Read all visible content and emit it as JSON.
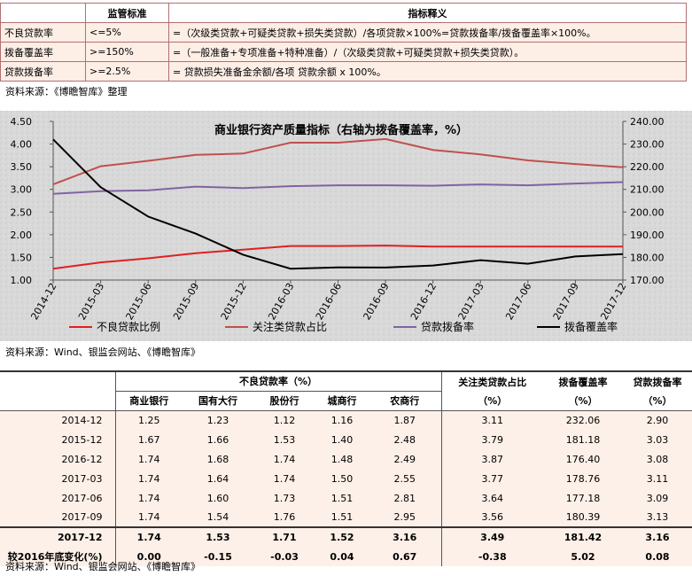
{
  "defs_table": {
    "headers": [
      "",
      "监管标准",
      "指标释义"
    ],
    "rows": [
      {
        "name": "不良贷款率",
        "standard": "<=5%",
        "definition": "=（次级类贷款+可疑类贷款+损失类贷款）/各项贷款×100%=贷款拨备率/拨备覆盖率×100%。"
      },
      {
        "name": "拨备覆盖率",
        "standard": ">=150%",
        "definition": "=（一般准备+专项准备+特种准备）/（次级类贷款+可疑类贷款+损失类贷款）。"
      },
      {
        "name": "贷款拨备率",
        "standard": ">=2.5%",
        "definition": "= 贷款损失准备金余额/各项 贷款余额 x 100%。"
      }
    ],
    "source": "资料来源：《博瞻智库》整理"
  },
  "chart_data": {
    "type": "line",
    "title": "商业银行资产质量指标（右轴为拨备覆盖率，%）",
    "categories": [
      "2014-12",
      "2015-03",
      "2015-06",
      "2015-09",
      "2015-12",
      "2016-03",
      "2016-06",
      "2016-09",
      "2016-12",
      "2017-03",
      "2017-06",
      "2017-09",
      "2017-12"
    ],
    "left_axis": {
      "ylim": [
        1.0,
        4.5
      ],
      "ticks": [
        "1.00",
        "1.50",
        "2.00",
        "2.50",
        "3.00",
        "3.50",
        "4.00",
        "4.50"
      ]
    },
    "right_axis": {
      "ylim": [
        170,
        240
      ],
      "ticks": [
        "170.00",
        "180.00",
        "190.00",
        "200.00",
        "210.00",
        "220.00",
        "230.00",
        "240.00"
      ]
    },
    "series": [
      {
        "name": "不良贷款比例",
        "axis": "left",
        "color": "#e02020",
        "values": [
          1.25,
          1.39,
          1.48,
          1.59,
          1.67,
          1.75,
          1.75,
          1.76,
          1.74,
          1.74,
          1.74,
          1.74,
          1.74
        ]
      },
      {
        "name": "关注类贷款占比",
        "axis": "left",
        "color": "#c0504d",
        "values": [
          3.11,
          3.51,
          3.63,
          3.76,
          3.79,
          4.03,
          4.03,
          4.11,
          3.87,
          3.77,
          3.64,
          3.56,
          3.49
        ]
      },
      {
        "name": "贷款拨备率",
        "axis": "left",
        "color": "#8064a2",
        "values": [
          2.9,
          2.96,
          2.98,
          3.06,
          3.03,
          3.07,
          3.09,
          3.09,
          3.08,
          3.11,
          3.09,
          3.13,
          3.16
        ]
      },
      {
        "name": "拨备覆盖率",
        "axis": "right",
        "color": "#000000",
        "values": [
          232.06,
          211.0,
          198.0,
          190.5,
          181.18,
          175.0,
          175.6,
          175.5,
          176.4,
          178.76,
          177.18,
          180.39,
          181.42
        ]
      }
    ],
    "legend_position": "bottom",
    "grid": false
  },
  "chart_source": "资料来源：Wind、银监会网站、《博瞻智库》",
  "stats_table": {
    "group_header": "不良贷款率（%）",
    "sub_headers": [
      "商业银行",
      "国有大行",
      "股份行",
      "城商行",
      "农商行"
    ],
    "right_headers": [
      {
        "line1": "关注类贷款占比",
        "line2": "（%）"
      },
      {
        "line1": "拨备覆盖率",
        "line2": "（%）"
      },
      {
        "line1": "贷款拨备率",
        "line2": "（%）"
      }
    ],
    "rows": [
      {
        "label": "2014-12",
        "values": [
          "1.25",
          "1.23",
          "1.12",
          "1.16",
          "1.87",
          "3.11",
          "232.06",
          "2.90"
        ]
      },
      {
        "label": "2015-12",
        "values": [
          "1.67",
          "1.66",
          "1.53",
          "1.40",
          "2.48",
          "3.79",
          "181.18",
          "3.03"
        ]
      },
      {
        "label": "2016-12",
        "values": [
          "1.74",
          "1.68",
          "1.74",
          "1.48",
          "2.49",
          "3.87",
          "176.40",
          "3.08"
        ]
      },
      {
        "label": "2017-03",
        "values": [
          "1.74",
          "1.64",
          "1.74",
          "1.50",
          "2.55",
          "3.77",
          "178.76",
          "3.11"
        ]
      },
      {
        "label": "2017-06",
        "values": [
          "1.74",
          "1.60",
          "1.73",
          "1.51",
          "2.81",
          "3.64",
          "177.18",
          "3.09"
        ]
      },
      {
        "label": "2017-09",
        "values": [
          "1.74",
          "1.54",
          "1.76",
          "1.51",
          "2.95",
          "3.56",
          "180.39",
          "3.13"
        ]
      }
    ],
    "bold_rows": [
      {
        "label": "2017-12",
        "values": [
          "1.74",
          "1.53",
          "1.71",
          "1.52",
          "3.16",
          "3.49",
          "181.42",
          "3.16"
        ]
      },
      {
        "label": "较2016年底变化(%)",
        "values": [
          "0.00",
          "-0.15",
          "-0.03",
          "0.04",
          "0.67",
          "-0.38",
          "5.02",
          "0.08"
        ]
      }
    ],
    "source": "资料来源：Wind、银监会网站、《博瞻智库》"
  }
}
